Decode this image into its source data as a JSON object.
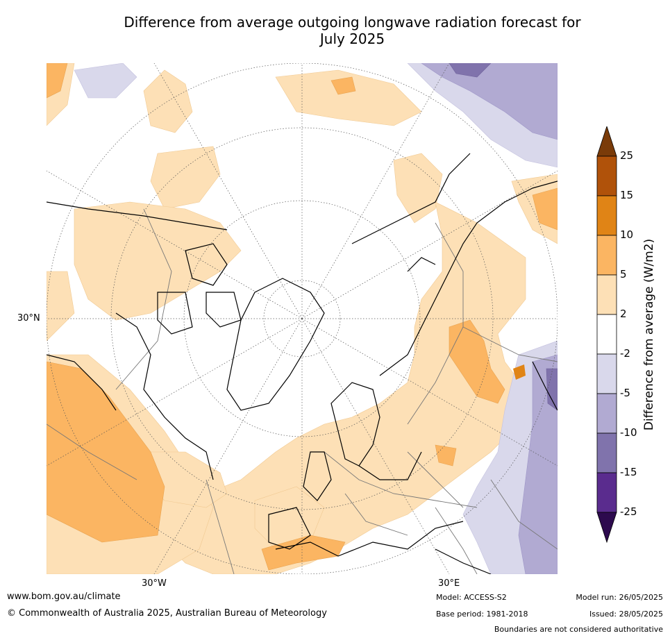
{
  "title_line1": "Difference from average outgoing longwave radiation forecast for",
  "title_line2": "July 2025",
  "map": {
    "projection": "north polar stereographic",
    "lon_labels": [
      "30°W",
      "30°E"
    ],
    "lat_labels": [
      "30°N"
    ],
    "gridlines": "dotted",
    "coastlines": true,
    "country_boundaries": true
  },
  "colorbar": {
    "label": "Difference from average (W/m2)",
    "ticks": [
      "25",
      "15",
      "10",
      "5",
      "2",
      "-2",
      "-5",
      "-10",
      "-15",
      "-25"
    ],
    "bins": [
      {
        "range": "> 25",
        "color": "#7a3b09"
      },
      {
        "range": "15 to 25",
        "color": "#b0520a"
      },
      {
        "range": "10 to 15",
        "color": "#e08416"
      },
      {
        "range": "5 to 10",
        "color": "#fbb562"
      },
      {
        "range": "2 to 5",
        "color": "#fde0b6"
      },
      {
        "range": "-2 to 2",
        "color": "#ffffff"
      },
      {
        "range": "-5 to -2",
        "color": "#d9d8eb"
      },
      {
        "range": "-10 to -5",
        "color": "#b1aad2"
      },
      {
        "range": "-15 to -10",
        "color": "#8073ac"
      },
      {
        "range": "-25 to -15",
        "color": "#5a2c8e"
      },
      {
        "range": "< -25",
        "color": "#2d0a4e"
      }
    ]
  },
  "footer": {
    "website": "www.bom.gov.au/climate",
    "copyright": "© Commonwealth of Australia 2025, Australian Bureau of Meteorology",
    "model": "Model: ACCESS-S2",
    "base_period": "Base period: 1981-2018",
    "model_run": "Model run: 26/05/2025",
    "issued": "Issued: 28/05/2025",
    "disclaimer": "Boundaries are not considered authoritative"
  }
}
